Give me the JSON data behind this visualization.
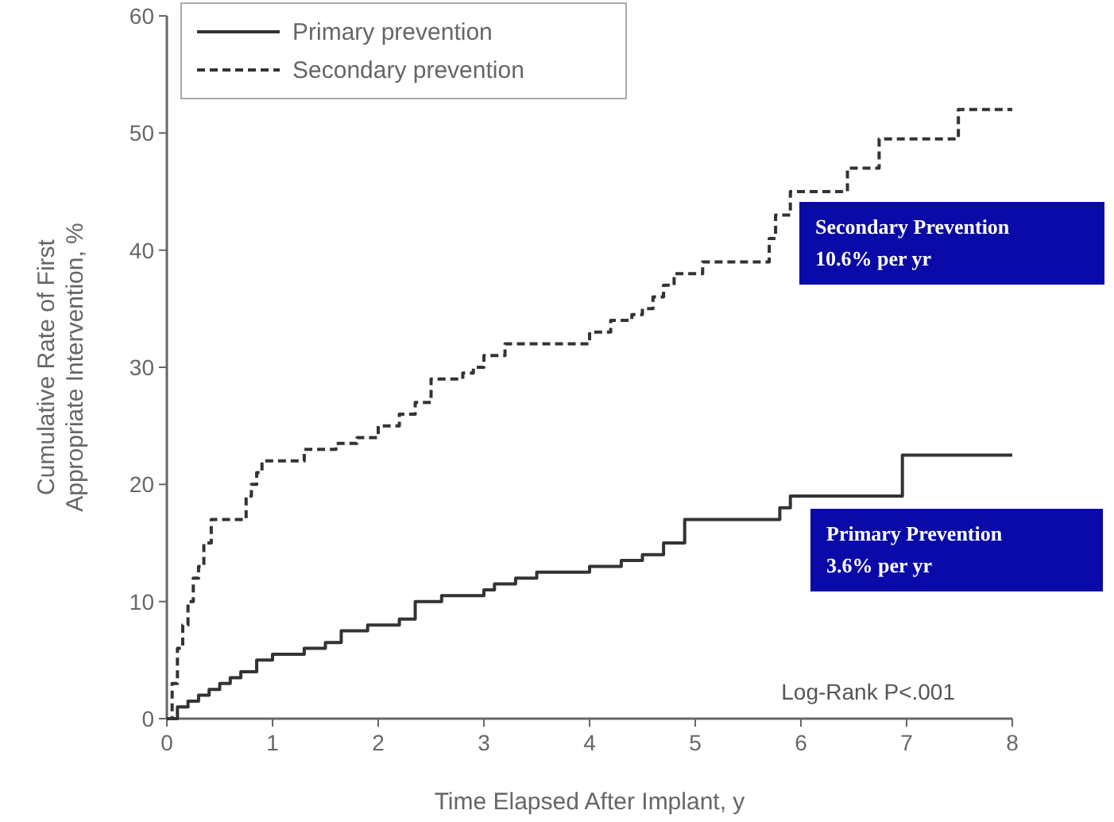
{
  "chart_data": {
    "type": "step",
    "xlabel": "Time Elapsed After Implant, y",
    "ylabel": "Cumulative Rate of First\nAppropriate Intervention, %",
    "xlim": [
      0,
      8
    ],
    "xticks": [
      0,
      1,
      2,
      3,
      4,
      5,
      6,
      7,
      8
    ],
    "ylim": [
      0,
      60
    ],
    "yticks": [
      0,
      10,
      20,
      30,
      40,
      50,
      60
    ],
    "grid": false,
    "legend": "top left",
    "series": [
      {
        "name": "Primary prevention",
        "color": "#333333",
        "line_style": "solid",
        "x": [
          0,
          0.1,
          0.2,
          0.3,
          0.4,
          0.5,
          0.6,
          0.7,
          0.85,
          1.0,
          1.3,
          1.5,
          1.65,
          1.9,
          2.2,
          2.35,
          2.6,
          2.8,
          3.0,
          3.1,
          3.3,
          3.5,
          3.8,
          4.0,
          4.3,
          4.5,
          4.7,
          4.9,
          5.8,
          5.9,
          6.96,
          8
        ],
        "values": [
          0,
          1,
          1.5,
          2,
          2.5,
          3,
          3.5,
          4,
          5,
          5.5,
          6,
          6.5,
          7.5,
          8,
          8.5,
          10,
          10.5,
          10.5,
          11,
          11.5,
          12,
          12.5,
          12.5,
          13,
          13.5,
          14,
          15,
          17,
          18,
          19,
          22.5,
          22.5
        ]
      },
      {
        "name": "Secondary prevention",
        "color": "#333333",
        "line_style": "dashed",
        "x": [
          0,
          0.05,
          0.1,
          0.15,
          0.2,
          0.25,
          0.3,
          0.35,
          0.42,
          0.75,
          0.8,
          0.85,
          0.9,
          0.95,
          1.3,
          1.6,
          1.8,
          2.0,
          2.2,
          2.35,
          2.5,
          2.8,
          2.9,
          3.0,
          3.2,
          3.6,
          4.0,
          4.2,
          4.4,
          4.5,
          4.6,
          4.7,
          4.8,
          5.07,
          5.7,
          5.76,
          5.9,
          6.44,
          6.74,
          7.49,
          8
        ],
        "values": [
          0,
          3,
          6,
          8,
          10,
          12,
          13,
          15,
          17,
          19,
          20,
          21,
          22,
          22,
          23,
          23.5,
          24,
          25,
          26,
          27,
          29,
          29.5,
          30,
          31,
          32,
          32,
          33,
          34,
          34.5,
          35,
          36,
          37,
          38,
          39,
          41,
          43,
          45,
          47,
          49.5,
          52,
          52
        ]
      }
    ],
    "annotations": [
      "Secondary Prevention\n10.6% per yr",
      "Primary Prevention\n3.6% per yr",
      "Log-Rank P<.001"
    ]
  }
}
